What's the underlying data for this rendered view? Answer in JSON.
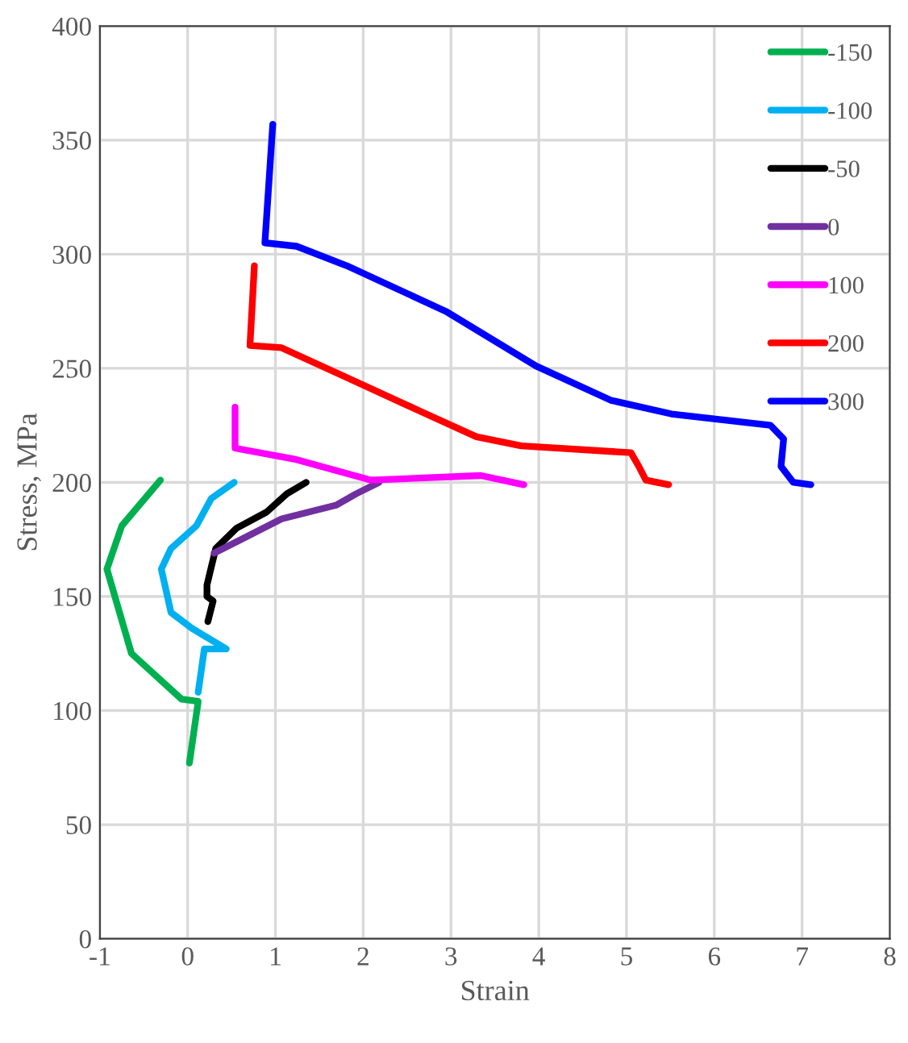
{
  "chart_data": {
    "type": "line",
    "xlabel": "Strain",
    "ylabel": "Stress, MPa",
    "xlim": [
      -1,
      8
    ],
    "xticks": [
      -1,
      0,
      1,
      2,
      3,
      4,
      5,
      6,
      7,
      8
    ],
    "ylim": [
      0,
      400
    ],
    "yticks": [
      0,
      50,
      100,
      150,
      200,
      250,
      300,
      350,
      400
    ],
    "grid": true,
    "legend": "top right",
    "marker": "none",
    "line_style": "solid",
    "series": [
      {
        "name": "-150",
        "color": "#00b050",
        "x": [
          0.02,
          0.12,
          -0.07,
          -0.64,
          -0.92,
          -0.75,
          -0.31
        ],
        "values": [
          77,
          104,
          105,
          125,
          162,
          181,
          201
        ]
      },
      {
        "name": "-100",
        "color": "#00b0f0",
        "x": [
          0.12,
          0.19,
          0.44,
          0.05,
          -0.19,
          -0.3,
          -0.19,
          0.1,
          0.27,
          0.53
        ],
        "values": [
          108,
          127,
          127,
          136,
          143,
          162,
          171,
          181,
          193,
          200
        ]
      },
      {
        "name": "-50",
        "color": "#000000",
        "x": [
          0.23,
          0.29,
          0.22,
          0.22,
          0.32,
          0.56,
          0.9,
          1.13,
          1.35
        ],
        "values": [
          139,
          148,
          150,
          155,
          171,
          180,
          187,
          195,
          200
        ]
      },
      {
        "name": "0",
        "color": "#7030a0",
        "x": [
          0.3,
          0.61,
          1.07,
          1.69,
          1.92,
          2.18
        ],
        "values": [
          169,
          175,
          184,
          190,
          195,
          200
        ]
      },
      {
        "name": "100",
        "color": "#ff00ff",
        "x": [
          0.54,
          0.54,
          1.24,
          2.09,
          3.34,
          3.83
        ],
        "values": [
          233,
          215,
          210,
          201,
          203,
          199
        ]
      },
      {
        "name": "200",
        "color": "#ff0000",
        "x": [
          0.76,
          0.71,
          1.07,
          1.81,
          2.66,
          3.29,
          3.8,
          5.05,
          5.14,
          5.22,
          5.48
        ],
        "values": [
          295,
          260,
          259,
          246,
          231,
          220,
          216,
          213,
          207,
          201,
          199
        ]
      },
      {
        "name": "300",
        "color": "#0000ff",
        "x": [
          0.97,
          0.88,
          1.24,
          1.81,
          2.94,
          3.97,
          4.82,
          5.51,
          6.64,
          6.79,
          6.76,
          6.9,
          7.1
        ],
        "values": [
          357,
          305,
          303.5,
          295,
          275,
          251,
          236,
          230,
          225,
          219,
          207,
          200,
          199
        ]
      }
    ]
  }
}
